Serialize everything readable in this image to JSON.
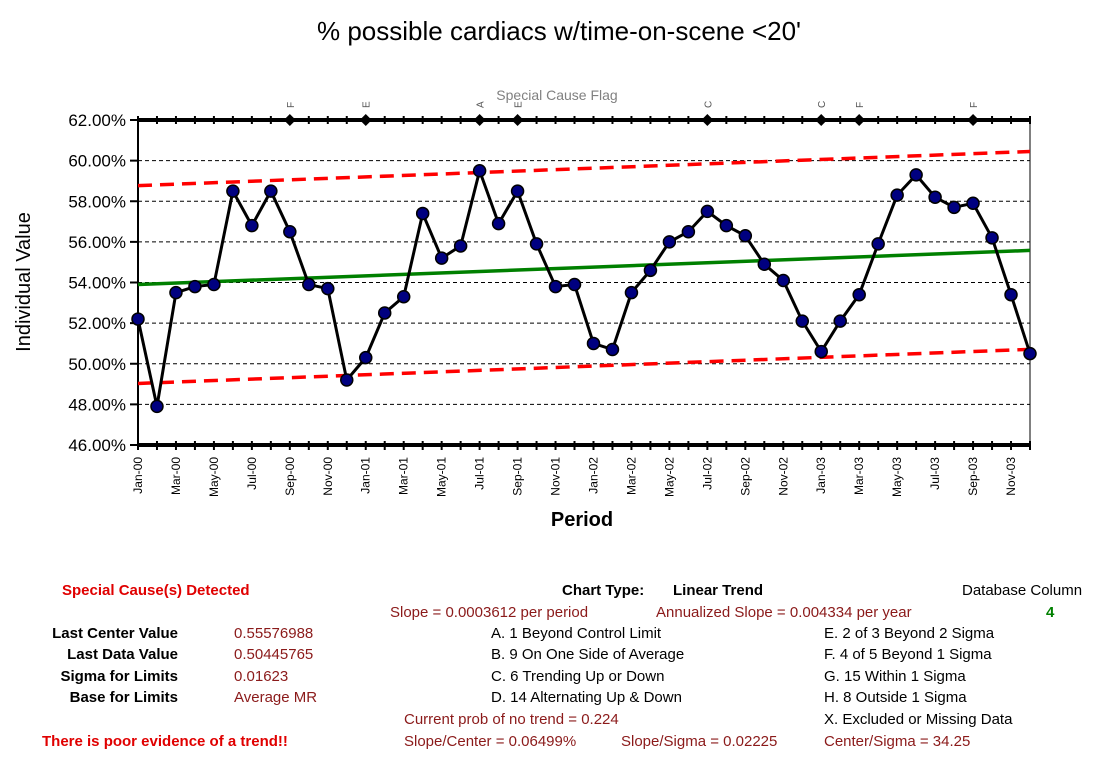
{
  "chart_data": {
    "type": "line",
    "title": "% possible cardiacs w/time-on-scene <20'",
    "xlabel": "Period",
    "ylabel": "Individual Value",
    "ylim": [
      0.46,
      0.62
    ],
    "yticks": [
      "46.00%",
      "48.00%",
      "50.00%",
      "52.00%",
      "54.00%",
      "56.00%",
      "58.00%",
      "60.00%",
      "62.00%"
    ],
    "x_tick_labels": [
      "Jan-00",
      "Mar-00",
      "May-00",
      "Jul-00",
      "Sep-00",
      "Nov-00",
      "Jan-01",
      "Mar-01",
      "May-01",
      "Jul-01",
      "Sep-01",
      "Nov-01",
      "Jan-02",
      "Mar-02",
      "May-02",
      "Jul-02",
      "Sep-02",
      "Nov-02",
      "Jan-03",
      "Mar-03",
      "May-03",
      "Jul-03",
      "Sep-03",
      "Nov-03"
    ],
    "periods": [
      "Jan-00",
      "Feb-00",
      "Mar-00",
      "Apr-00",
      "May-00",
      "Jun-00",
      "Jul-00",
      "Aug-00",
      "Sep-00",
      "Oct-00",
      "Nov-00",
      "Dec-00",
      "Jan-01",
      "Feb-01",
      "Mar-01",
      "Apr-01",
      "May-01",
      "Jun-01",
      "Jul-01",
      "Aug-01",
      "Sep-01",
      "Oct-01",
      "Nov-01",
      "Dec-01",
      "Jan-02",
      "Feb-02",
      "Mar-02",
      "Apr-02",
      "May-02",
      "Jun-02",
      "Jul-02",
      "Aug-02",
      "Sep-02",
      "Oct-02",
      "Nov-02",
      "Dec-02",
      "Jan-03",
      "Feb-03",
      "Mar-03",
      "Apr-03",
      "May-03",
      "Jun-03",
      "Jul-03",
      "Aug-03",
      "Sep-03",
      "Oct-03",
      "Nov-03",
      "Dec-03"
    ],
    "series": [
      {
        "values": [
          0.522,
          0.479,
          0.535,
          0.538,
          0.539,
          0.585,
          0.568,
          0.585,
          0.565,
          0.539,
          0.537,
          0.492,
          0.503,
          0.525,
          0.533,
          0.574,
          0.552,
          0.558,
          0.595,
          0.569,
          0.585,
          0.559,
          0.538,
          0.539,
          0.51,
          0.507,
          0.535,
          0.546,
          0.56,
          0.565,
          0.575,
          0.568,
          0.563,
          0.549,
          0.541,
          0.521,
          0.506,
          0.521,
          0.534,
          0.559,
          0.583,
          0.593,
          0.582,
          0.577,
          0.579,
          0.562,
          0.534,
          0.505
        ],
        "color": "#000000"
      },
      {
        "values": [
          0.539,
          0.5558
        ],
        "color": "#008000",
        "span": "first-last"
      },
      {
        "values": [
          0.5877,
          0.6045
        ],
        "color": "#ff0000",
        "span": "first-last"
      },
      {
        "values": [
          0.4903,
          0.5071
        ],
        "color": "#ff0000",
        "span": "first-last"
      }
    ],
    "flag_label": "Special Cause Flag",
    "flags": [
      {
        "period": 8,
        "letter": "F"
      },
      {
        "period": 12,
        "letter": "E"
      },
      {
        "period": 18,
        "letter": "A"
      },
      {
        "period": 20,
        "letter": "E"
      },
      {
        "period": 30,
        "letter": "C"
      },
      {
        "period": 36,
        "letter": "C"
      },
      {
        "period": 38,
        "letter": "F"
      },
      {
        "period": 44,
        "letter": "F"
      }
    ],
    "grid": true,
    "colors": {
      "data": "#000000",
      "marker": "#000080",
      "center": "#008000",
      "limits": "#ff0000"
    }
  },
  "panel": {
    "special_cause": "Special Cause(s) Detected",
    "chart_type_label": "Chart Type:",
    "chart_type_value": "Linear Trend",
    "db_column_label": "Database Column",
    "db_column_value": "4",
    "slope": "Slope = 0.0003612 per period",
    "annual_slope": "Annualized Slope = 0.004334 per year",
    "last_center_label": "Last Center Value",
    "last_center_value": "0.55576988",
    "last_data_label": "Last Data Value",
    "last_data_value": "0.50445765",
    "sigma_label": "Sigma for Limits",
    "sigma_value": "0.01623",
    "base_label": "Base for Limits",
    "base_value": "Average MR",
    "rule_a": "A.  1 Beyond Control Limit",
    "rule_b": "B.  9 On One Side of Average",
    "rule_c": "C.  6 Trending Up or Down",
    "rule_d": "D.  14 Alternating  Up & Down",
    "rule_e": "E.  2 of 3 Beyond 2 Sigma",
    "rule_f": "F.  4 of 5 Beyond 1 Sigma",
    "rule_g": "G.  15 Within 1 Sigma",
    "rule_h": "H.  8 Outside 1 Sigma",
    "rule_x": "X.  Excluded or Missing Data",
    "prob": "Current prob of no trend = 0.224",
    "poor": "There is poor evidence of a trend!!",
    "slope_center": "Slope/Center = 0.06499%",
    "slope_sigma": "Slope/Sigma = 0.02225",
    "center_sigma": "Center/Sigma = 34.25"
  }
}
